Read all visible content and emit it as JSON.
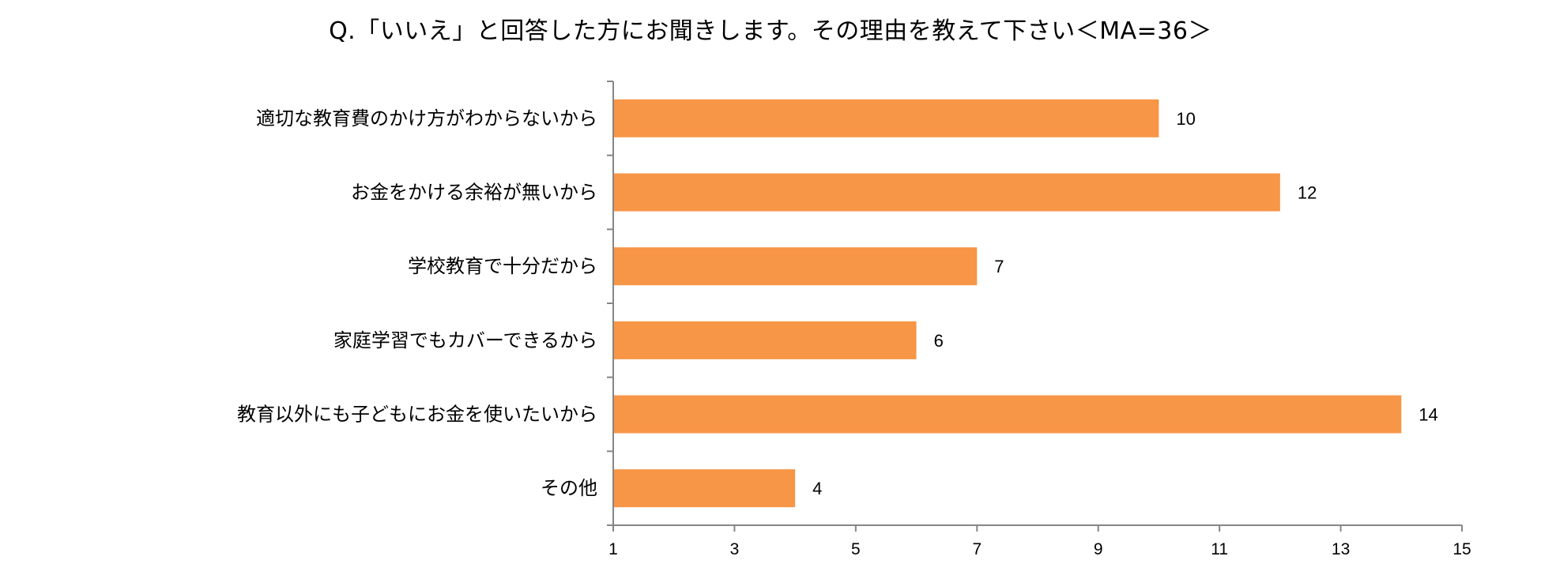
{
  "chart_data": {
    "type": "bar",
    "orientation": "horizontal",
    "title": "Q.「いいえ」と回答した方にお聞きします。その理由を教えて下さい＜MA=36＞",
    "categories": [
      "適切な教育費のかけ方がわからないから",
      "お金をかける余裕が無いから",
      "学校教育で十分だから",
      "家庭学習でもカバーできるから",
      "教育以外にも子どもにお金を使いたいから",
      "その他"
    ],
    "values": [
      10,
      12,
      7,
      6,
      14,
      4
    ],
    "data_labels": [
      "10",
      "12",
      "7",
      "6",
      "14",
      "4"
    ],
    "xlim": [
      1,
      15
    ],
    "xticks": [
      1,
      3,
      5,
      7,
      9,
      11,
      13,
      15
    ],
    "xlabel": "",
    "ylabel": "",
    "grid": false,
    "legend": "none",
    "bar_color": "#F79646"
  }
}
